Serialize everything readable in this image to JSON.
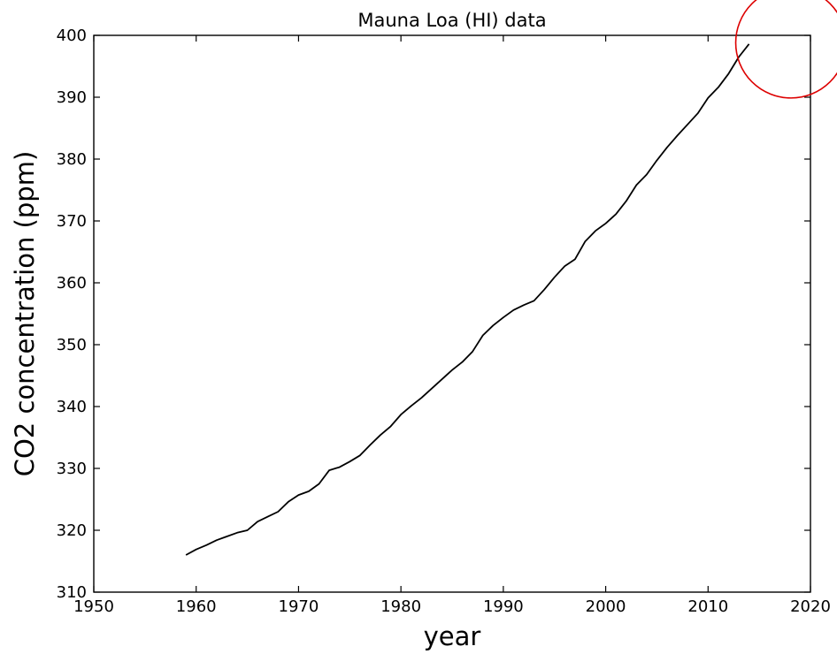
{
  "chart_data": {
    "type": "line",
    "title": "Mauna Loa (HI) data",
    "xlabel": "year",
    "ylabel": "CO2 concentration (ppm)",
    "xlim": [
      1950,
      2020
    ],
    "ylim": [
      310,
      400
    ],
    "xticks": [
      "1950",
      "1960",
      "1970",
      "1980",
      "1990",
      "2000",
      "2010",
      "2020"
    ],
    "yticks": [
      "310",
      "320",
      "330",
      "340",
      "350",
      "360",
      "370",
      "380",
      "390",
      "400"
    ],
    "grid": false,
    "line_color": "#000000",
    "series": [
      {
        "x": [
          1959,
          1960,
          1961,
          1962,
          1963,
          1964,
          1965,
          1966,
          1967,
          1968,
          1969,
          1970,
          1971,
          1972,
          1973,
          1974,
          1975,
          1976,
          1977,
          1978,
          1979,
          1980,
          1981,
          1982,
          1983,
          1984,
          1985,
          1986,
          1987,
          1988,
          1989,
          1990,
          1991,
          1992,
          1993,
          1994,
          1995,
          1996,
          1997,
          1998,
          1999,
          2000,
          2001,
          2002,
          2003,
          2004,
          2005,
          2006,
          2007,
          2008,
          2009,
          2010,
          2011,
          2012,
          2013,
          2014
        ],
        "y": [
          316.0,
          316.9,
          317.6,
          318.4,
          319.0,
          319.6,
          320.0,
          321.4,
          322.2,
          323.0,
          324.6,
          325.7,
          326.3,
          327.5,
          329.7,
          330.2,
          331.1,
          332.1,
          333.8,
          335.4,
          336.8,
          338.7,
          340.1,
          341.4,
          342.9,
          344.4,
          345.9,
          347.2,
          348.9,
          351.5,
          353.1,
          354.4,
          355.6,
          356.4,
          357.1,
          358.9,
          360.9,
          362.7,
          363.8,
          366.7,
          368.4,
          369.6,
          371.1,
          373.2,
          375.8,
          377.5,
          379.8,
          381.9,
          383.8,
          385.6,
          387.4,
          389.9,
          391.6,
          393.8,
          396.5,
          398.6
        ]
      }
    ],
    "annotation": {
      "shape": "circle",
      "color": "#dd0000",
      "center": [
        2018.1,
        398.8
      ],
      "radius_x": 5.4
    }
  }
}
